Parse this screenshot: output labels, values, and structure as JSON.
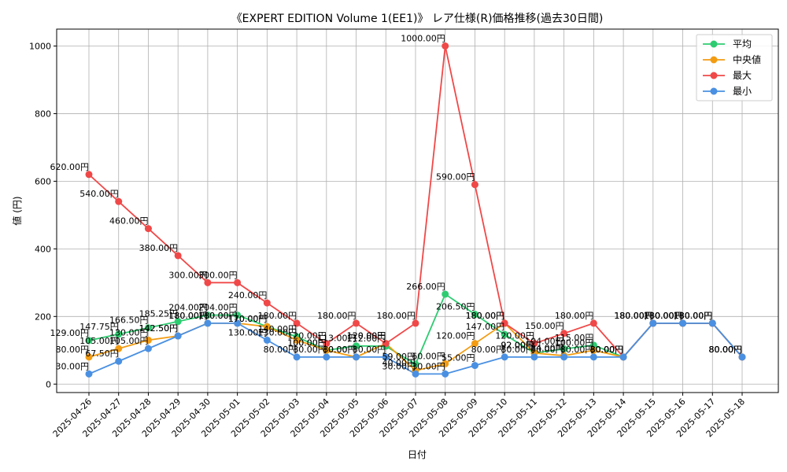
{
  "chart_data": {
    "type": "line",
    "title": "《EXPERT EDITION Volume 1(EE1)》 レア仕様(R)価格推移(過去30日間)",
    "xlabel": "日付",
    "ylabel": "値 (円)",
    "ylim": [
      -25,
      1050
    ],
    "yticks": [
      0,
      200,
      400,
      600,
      800,
      1000
    ],
    "grid": true,
    "legend_position": "top-right",
    "value_suffix": "円",
    "categories": [
      "2025-04-26",
      "2025-04-27",
      "2025-04-28",
      "2025-04-29",
      "2025-04-30",
      "2025-05-01",
      "2025-05-02",
      "2025-05-03",
      "2025-05-04",
      "2025-05-05",
      "2025-05-06",
      "2025-05-07",
      "2025-05-08",
      "2025-05-09",
      "2025-05-10",
      "2025-05-11",
      "2025-05-12",
      "2025-05-13",
      "2025-05-14",
      "2025-05-15",
      "2025-05-16",
      "2025-05-17",
      "2025-05-18"
    ],
    "series": [
      {
        "name": "平均",
        "color": "#2ecc71",
        "values": [
          129,
          147.75,
          166.5,
          185.25,
          204,
          204,
          170,
          140,
          100,
          113,
          112,
          59,
          266,
          206.5,
          147,
          92,
          104,
          115,
          80,
          180,
          180,
          180,
          80
        ]
      },
      {
        "name": "中央値",
        "color": "#f39c12",
        "values": [
          80,
          105,
          130,
          142.5,
          180,
          180,
          170,
          130,
          100,
          80,
          120,
          40,
          60,
          120,
          180,
          92,
          84,
          100,
          80,
          180,
          180,
          180,
          80
        ]
      },
      {
        "name": "最大",
        "color": "#f04848",
        "values": [
          620,
          540,
          460,
          380,
          300,
          300,
          240,
          180,
          120,
          180,
          120,
          180,
          1000,
          590,
          180,
          120,
          150,
          180,
          80,
          180,
          180,
          180,
          80
        ]
      },
      {
        "name": "最小",
        "color": "#4a90e2",
        "values": [
          30,
          67.5,
          105,
          142.5,
          180,
          180,
          130,
          80,
          80,
          80,
          80,
          30,
          30,
          55,
          80,
          80,
          80,
          80,
          80,
          180,
          180,
          180,
          80
        ]
      }
    ]
  }
}
